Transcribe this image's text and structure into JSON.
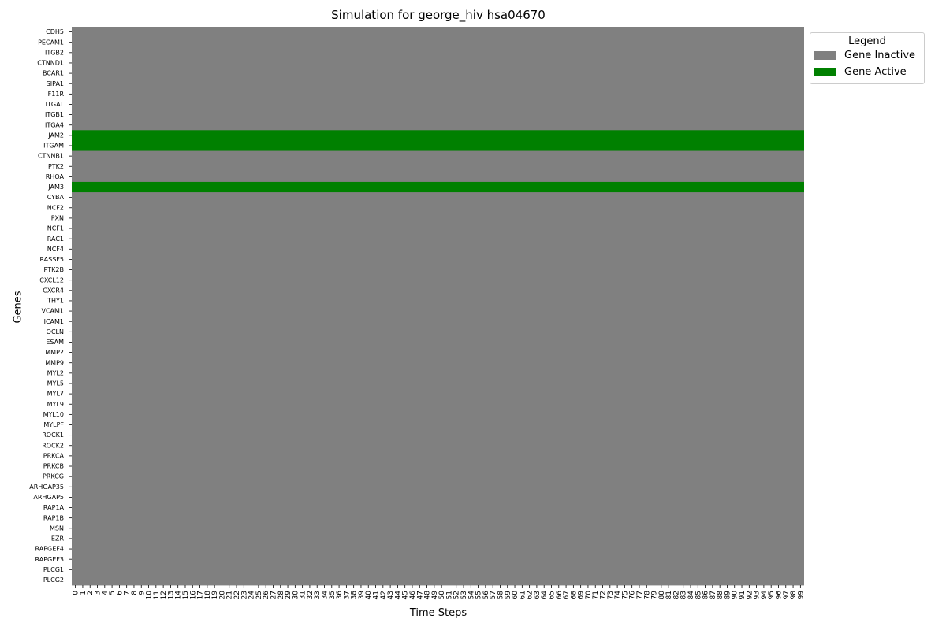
{
  "chart_data": {
    "type": "heatmap",
    "title": "Simulation for george_hiv hsa04670",
    "xlabel": "Time Steps",
    "ylabel": "Genes",
    "x": [
      0,
      1,
      2,
      3,
      4,
      5,
      6,
      7,
      8,
      9,
      10,
      11,
      12,
      13,
      14,
      15,
      16,
      17,
      18,
      19,
      20,
      21,
      22,
      23,
      24,
      25,
      26,
      27,
      28,
      29,
      30,
      31,
      32,
      33,
      34,
      35,
      36,
      37,
      38,
      39,
      40,
      41,
      42,
      43,
      44,
      45,
      46,
      47,
      48,
      49,
      50,
      51,
      52,
      53,
      54,
      55,
      56,
      57,
      58,
      59,
      60,
      61,
      62,
      63,
      64,
      65,
      66,
      67,
      68,
      69,
      70,
      71,
      72,
      73,
      74,
      75,
      76,
      77,
      78,
      79,
      80,
      81,
      82,
      83,
      84,
      85,
      86,
      87,
      88,
      89,
      90,
      91,
      92,
      93,
      94,
      95,
      96,
      97,
      98,
      99
    ],
    "genes": [
      "CDH5",
      "PECAM1",
      "ITGB2",
      "CTNND1",
      "BCAR1",
      "SIPA1",
      "F11R",
      "ITGAL",
      "ITGB1",
      "ITGA4",
      "JAM2",
      "ITGAM",
      "CTNNB1",
      "PTK2",
      "RHOA",
      "JAM3",
      "CYBA",
      "NCF2",
      "PXN",
      "NCF1",
      "RAC1",
      "NCF4",
      "RASSF5",
      "PTK2B",
      "CXCL12",
      "CXCR4",
      "THY1",
      "VCAM1",
      "ICAM1",
      "OCLN",
      "ESAM",
      "MMP2",
      "MMP9",
      "MYL2",
      "MYL5",
      "MYL7",
      "MYL9",
      "MYL10",
      "MYLPF",
      "ROCK1",
      "ROCK2",
      "PRKCA",
      "PRKCB",
      "PRKCG",
      "ARHGAP35",
      "ARHGAP5",
      "RAP1A",
      "RAP1B",
      "MSN",
      "EZR",
      "RAPGEF4",
      "RAPGEF3",
      "PLCG1",
      "PLCG2"
    ],
    "state_by_gene": [
      0,
      0,
      0,
      0,
      0,
      0,
      0,
      0,
      0,
      0,
      1,
      1,
      0,
      0,
      0,
      1,
      0,
      0,
      0,
      0,
      0,
      0,
      0,
      0,
      0,
      0,
      0,
      0,
      0,
      0,
      0,
      0,
      0,
      0,
      0,
      0,
      0,
      0,
      0,
      0,
      0,
      0,
      0,
      0,
      0,
      0,
      0,
      0,
      0,
      0,
      0,
      0,
      0,
      0
    ],
    "note_states": "state constant across all time steps for each gene",
    "grid": false,
    "legend": {
      "title": "Legend",
      "placement": "outside-top-right",
      "entries": [
        {
          "label": "Gene Inactive",
          "color": "#808080"
        },
        {
          "label": "Gene Active",
          "color": "#008000"
        }
      ]
    }
  }
}
